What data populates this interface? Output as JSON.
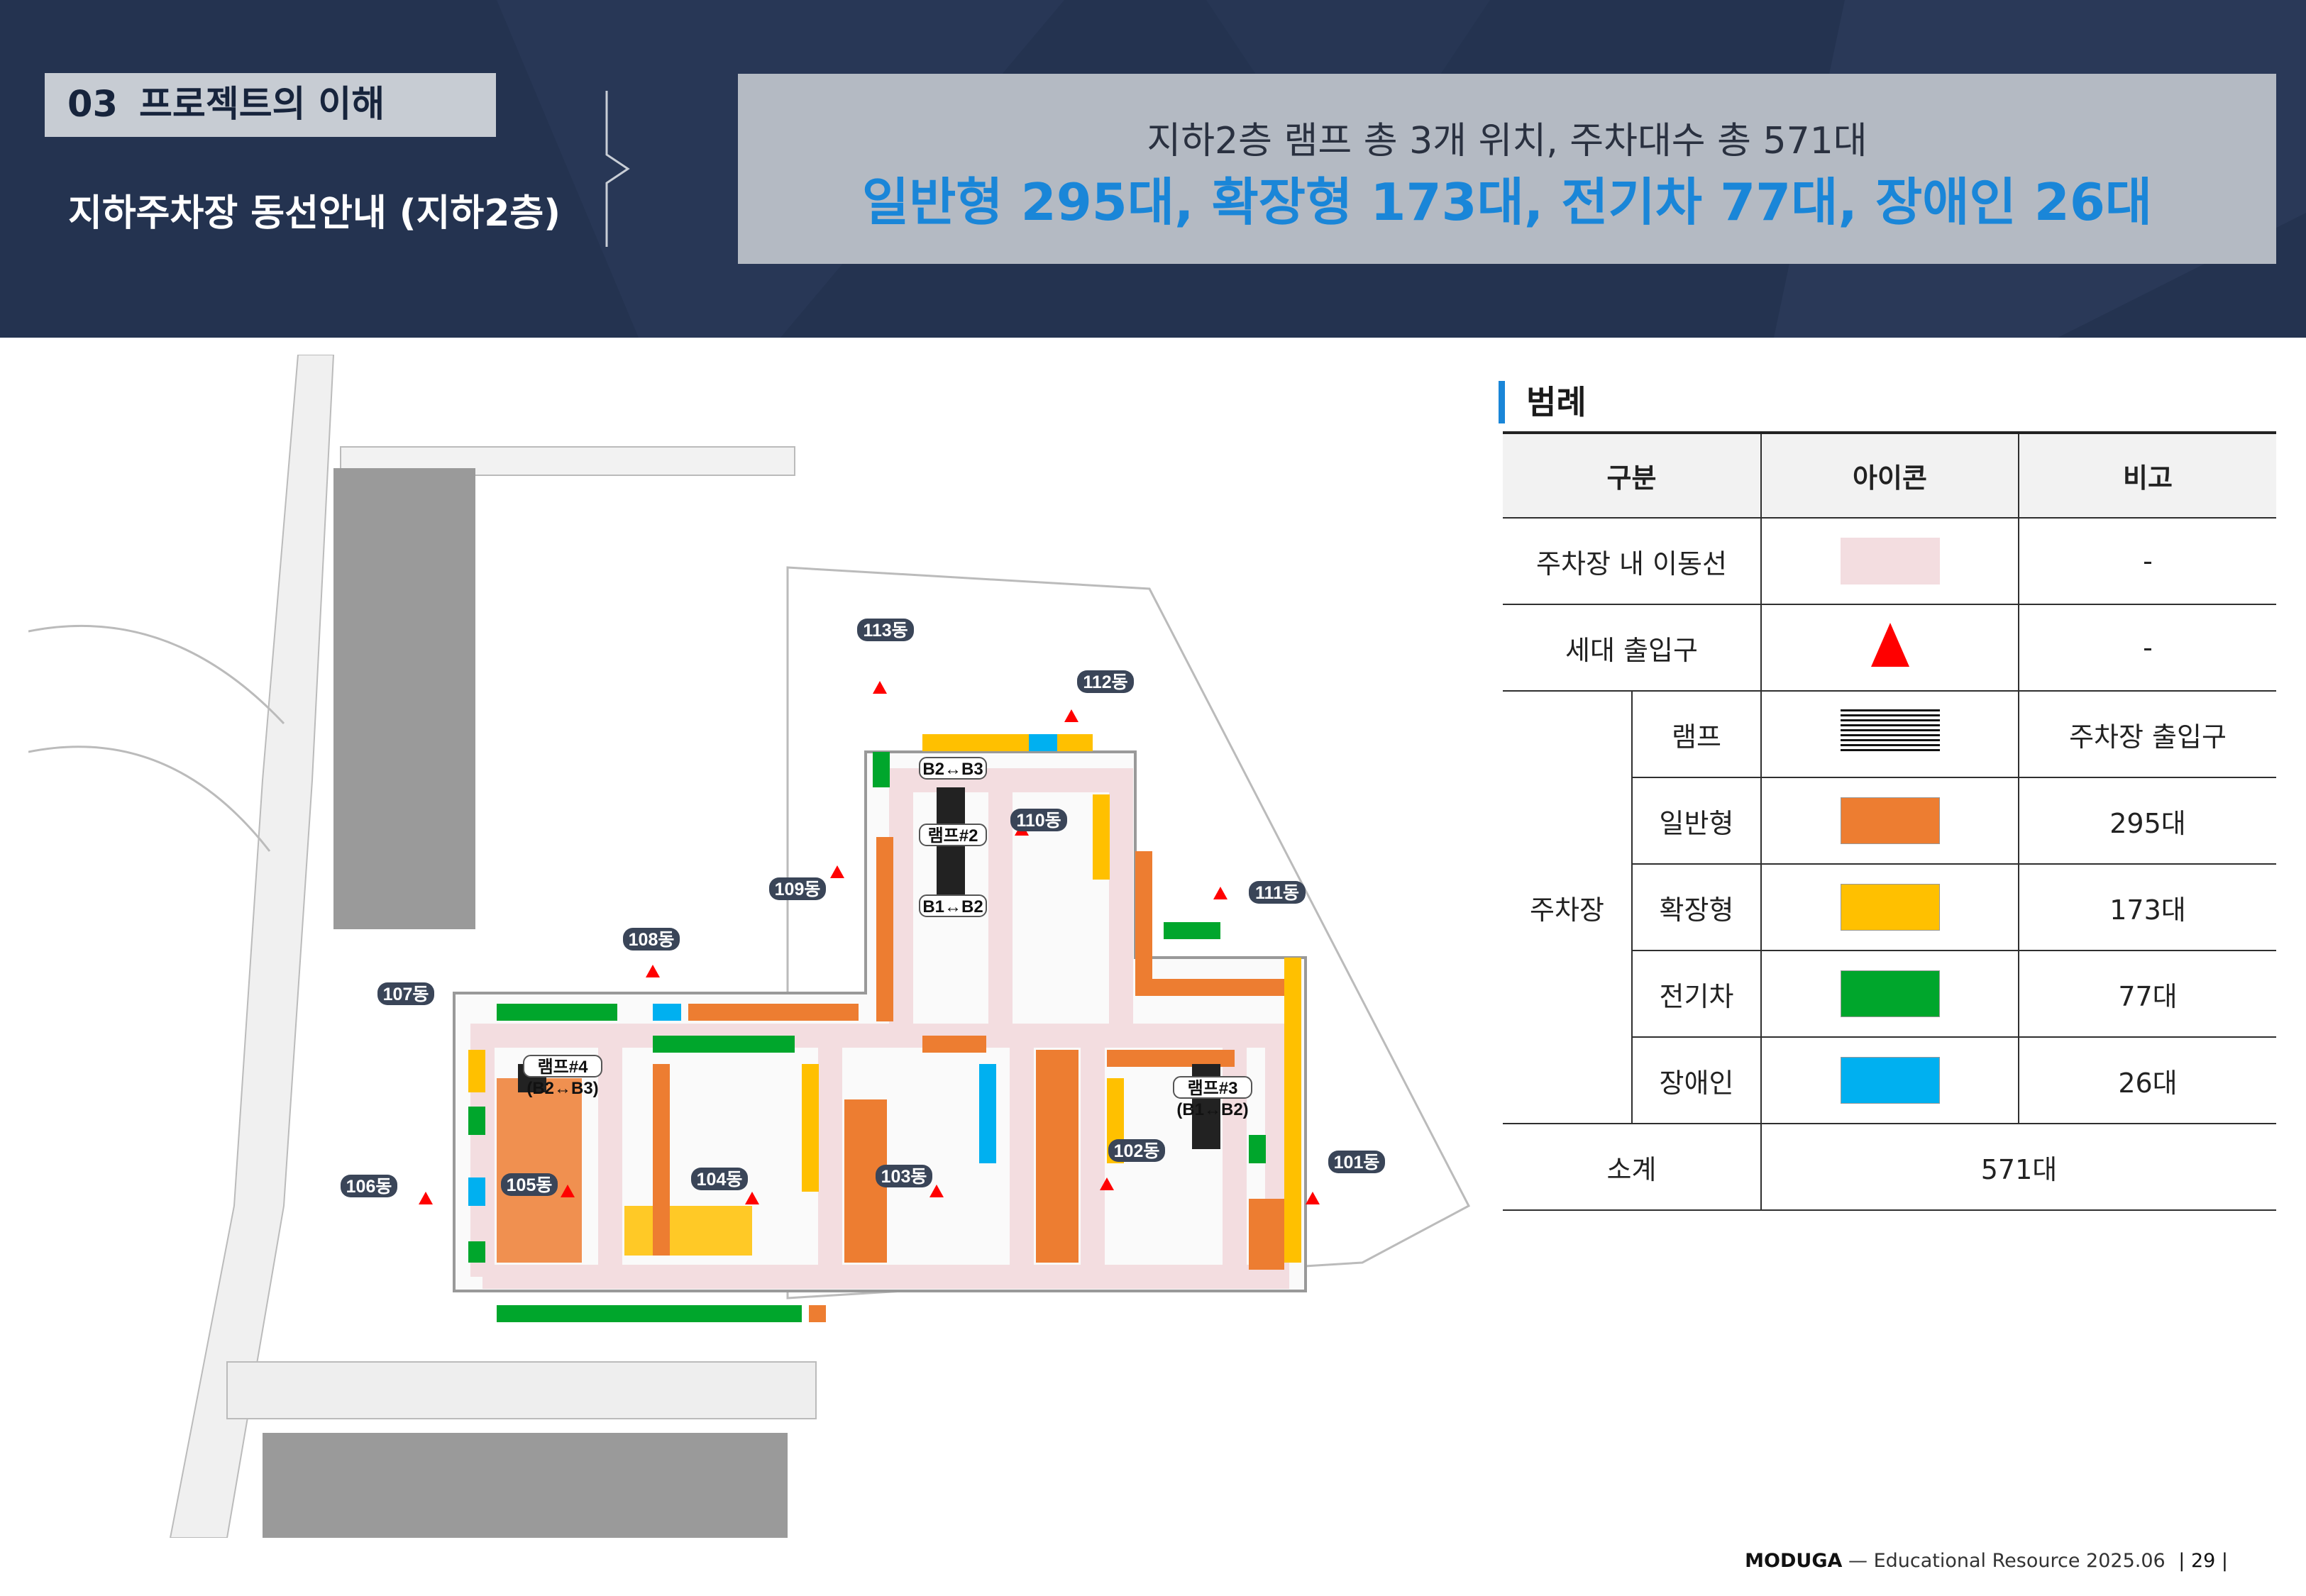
{
  "header": {
    "section_number": "03",
    "section_title": "프로젝트의 이해",
    "page_title": "지하주차장 동선안내 (지하2층)",
    "summary_line1": "지하2층 램프 총 3개 위치, 주차대수 총 571대",
    "summary_line2": "일반형 295대, 확장형 173대, 전기차 77대, 장애인 26대"
  },
  "map": {
    "buildings": [
      "113동",
      "112동",
      "110동",
      "109동",
      "111동",
      "108동",
      "107동",
      "106동",
      "105동",
      "104동",
      "103동",
      "102동",
      "101동"
    ],
    "ramps": [
      "B2↔B3",
      "램프#2",
      "B1↔B2",
      "램프#4",
      "(B2↔B3)",
      "램프#3",
      "(B1↔B2)"
    ]
  },
  "legend": {
    "title": "범례",
    "headers": [
      "구분",
      "아이콘",
      "비고"
    ],
    "rows": {
      "route": {
        "label": "주차장 내 이동선",
        "note": "-",
        "color": "#f3dde0"
      },
      "entrance": {
        "label": "세대 출입구",
        "note": "-",
        "icon": "red-triangle-icon"
      },
      "parking_group": "주차장",
      "ramp": {
        "label": "램프",
        "note": "주차장 출입구",
        "icon": "ramp-stripes-icon"
      },
      "general": {
        "label": "일반형",
        "note": "295대",
        "color": "#ed7d31"
      },
      "expanded": {
        "label": "확장형",
        "note": "173대",
        "color": "#ffc000"
      },
      "ev": {
        "label": "전기차",
        "note": "77대",
        "color": "#00a62c"
      },
      "disabled": {
        "label": "장애인",
        "note": "26대",
        "color": "#00b0f0"
      },
      "total": {
        "label": "소계",
        "value": "571대"
      }
    }
  },
  "footer": {
    "brand": "MODUGA",
    "dash": "—",
    "text": "Educational Resource 2025.06",
    "page": "| 29 |"
  }
}
